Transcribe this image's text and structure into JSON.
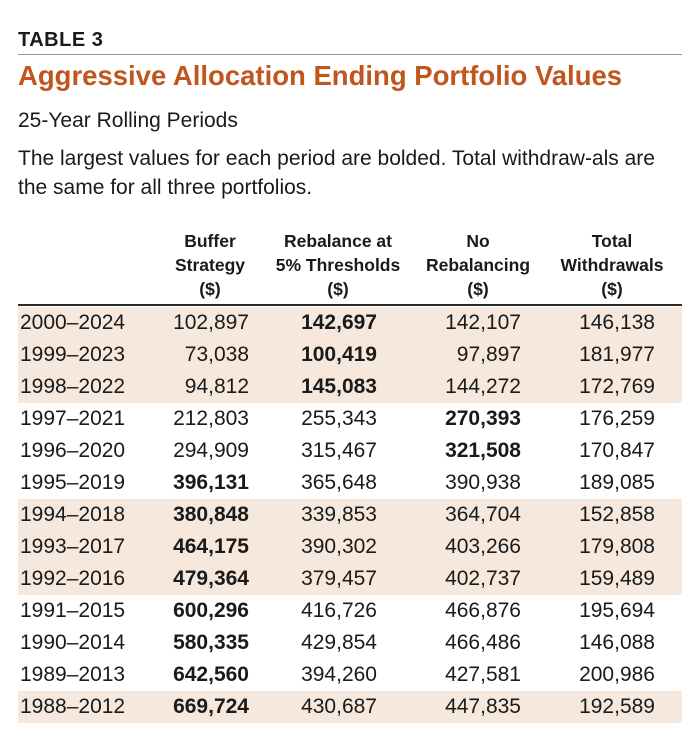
{
  "table_label": "TABLE 3",
  "title": "Aggressive Allocation Ending Portfolio Values",
  "subtitle": "25-Year Rolling Periods",
  "note": "The largest values for each period are bolded. Total withdraw-als are the same for all three portfolios.",
  "columns": [
    "Buffer\nStrategy\n($)",
    "Rebalance at\n5% Thresholds\n($)",
    "No\nRebalancing\n($)",
    "Total\nWithdrawals\n($)"
  ],
  "rows": [
    {
      "period": "2000–2024",
      "values": [
        "102,897",
        "142,697",
        "142,107",
        "146,138"
      ],
      "bold": 1,
      "shaded": true
    },
    {
      "period": "1999–2023",
      "values": [
        "73,038",
        "100,419",
        "97,897",
        "181,977"
      ],
      "bold": 1,
      "shaded": true
    },
    {
      "period": "1998–2022",
      "values": [
        "94,812",
        "145,083",
        "144,272",
        "172,769"
      ],
      "bold": 1,
      "shaded": true
    },
    {
      "period": "1997–2021",
      "values": [
        "212,803",
        "255,343",
        "270,393",
        "176,259"
      ],
      "bold": 2,
      "shaded": false
    },
    {
      "period": "1996–2020",
      "values": [
        "294,909",
        "315,467",
        "321,508",
        "170,847"
      ],
      "bold": 2,
      "shaded": false
    },
    {
      "period": "1995–2019",
      "values": [
        "396,131",
        "365,648",
        "390,938",
        "189,085"
      ],
      "bold": 0,
      "shaded": false
    },
    {
      "period": "1994–2018",
      "values": [
        "380,848",
        "339,853",
        "364,704",
        "152,858"
      ],
      "bold": 0,
      "shaded": true
    },
    {
      "period": "1993–2017",
      "values": [
        "464,175",
        "390,302",
        "403,266",
        "179,808"
      ],
      "bold": 0,
      "shaded": true
    },
    {
      "period": "1992–2016",
      "values": [
        "479,364",
        "379,457",
        "402,737",
        "159,489"
      ],
      "bold": 0,
      "shaded": true
    },
    {
      "period": "1991–2015",
      "values": [
        "600,296",
        "416,726",
        "466,876",
        "195,694"
      ],
      "bold": 0,
      "shaded": false
    },
    {
      "period": "1990–2014",
      "values": [
        "580,335",
        "429,854",
        "466,486",
        "146,088"
      ],
      "bold": 0,
      "shaded": false
    },
    {
      "period": "1989–2013",
      "values": [
        "642,560",
        "394,260",
        "427,581",
        "200,986"
      ],
      "bold": 0,
      "shaded": false
    },
    {
      "period": "1988–2012",
      "values": [
        "669,724",
        "430,687",
        "447,835",
        "192,589"
      ],
      "bold": 0,
      "shaded": true
    }
  ]
}
